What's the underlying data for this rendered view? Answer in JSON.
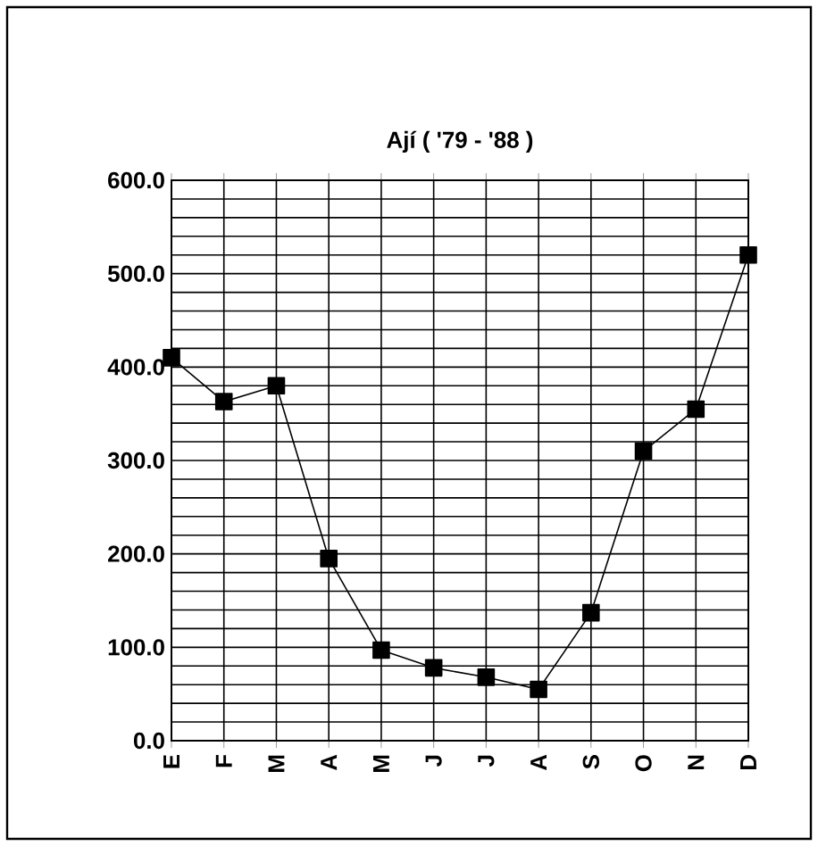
{
  "chart_data": {
    "type": "line",
    "title": "Ají ( '79 - '88 )",
    "categories": [
      "E",
      "F",
      "M",
      "A",
      "M",
      "J",
      "J",
      "A",
      "S",
      "O",
      "N",
      "D"
    ],
    "series": [
      {
        "color": "#000000",
        "values": [
          410,
          363,
          380,
          195,
          97,
          78,
          68,
          55,
          137,
          310,
          355,
          520
        ]
      }
    ],
    "ylim": [
      0,
      600
    ],
    "yticks": [
      {
        "value": 0,
        "label": "0.0"
      },
      {
        "value": 20,
        "label": null
      },
      {
        "value": 40,
        "label": null
      },
      {
        "value": 60,
        "label": null
      },
      {
        "value": 80,
        "label": null
      },
      {
        "value": 100,
        "label": "100.0"
      },
      {
        "value": 120,
        "label": null
      },
      {
        "value": 140,
        "label": null
      },
      {
        "value": 160,
        "label": null
      },
      {
        "value": 180,
        "label": null
      },
      {
        "value": 200,
        "label": "200.0"
      },
      {
        "value": 220,
        "label": null
      },
      {
        "value": 240,
        "label": null
      },
      {
        "value": 260,
        "label": null
      },
      {
        "value": 280,
        "label": null
      },
      {
        "value": 300,
        "label": "300.0"
      },
      {
        "value": 320,
        "label": null
      },
      {
        "value": 340,
        "label": null
      },
      {
        "value": 360,
        "label": null
      },
      {
        "value": 380,
        "label": null
      },
      {
        "value": 400,
        "label": "400.0"
      },
      {
        "value": 420,
        "label": null
      },
      {
        "value": 440,
        "label": null
      },
      {
        "value": 460,
        "label": null
      },
      {
        "value": 480,
        "label": null
      },
      {
        "value": 500,
        "label": "500.0"
      },
      {
        "value": 520,
        "label": null
      },
      {
        "value": 540,
        "label": null
      },
      {
        "value": 560,
        "label": null
      },
      {
        "value": 580,
        "label": null
      },
      {
        "value": 600,
        "label": "600.0"
      }
    ],
    "grid": true,
    "marker": "square",
    "line_style": "solid"
  }
}
